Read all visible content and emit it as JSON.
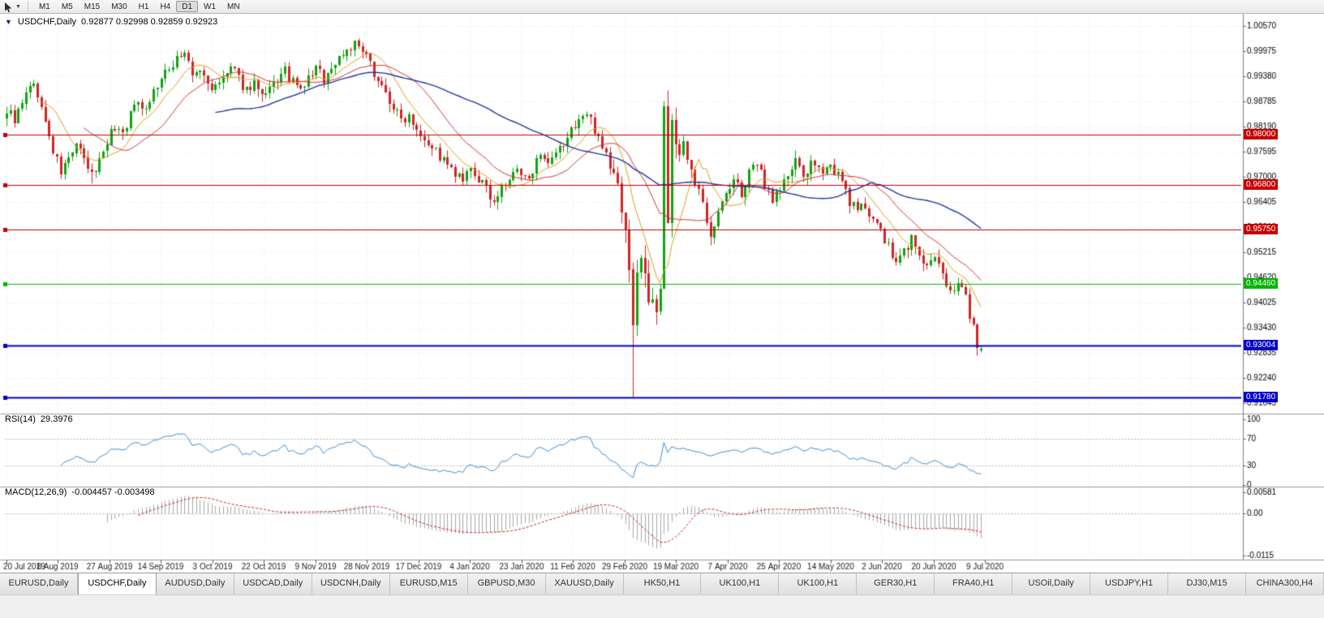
{
  "toolbar": {
    "timeframes": [
      {
        "label": "M1",
        "active": false
      },
      {
        "label": "M5",
        "active": false
      },
      {
        "label": "M15",
        "active": false
      },
      {
        "label": "M30",
        "active": false
      },
      {
        "label": "H1",
        "active": false
      },
      {
        "label": "H4",
        "active": false
      },
      {
        "label": "D1",
        "active": true
      },
      {
        "label": "W1",
        "active": false
      },
      {
        "label": "MN",
        "active": false
      }
    ]
  },
  "panels": {
    "main": {
      "symbol_tf": "USDCHF,Daily",
      "ohlc": "0.92877 0.92998 0.92859 0.92923"
    },
    "rsi": {
      "name": "RSI(14)",
      "value": "29.3976",
      "axis": [
        "100",
        "70",
        "30",
        "0"
      ],
      "axis_values": [
        100,
        70,
        30,
        0
      ]
    },
    "macd": {
      "name": "MACD(12,26,9)",
      "values": "-0.004457 -0.003498",
      "axis": [
        {
          "label": "0.00581",
          "value": 0.00581
        },
        {
          "label": "0.00",
          "value": 0
        },
        {
          "label": "-0.0115",
          "value": -0.0115
        }
      ]
    }
  },
  "colors": {
    "candle_up": "#0fa30f",
    "candle_down": "#cf2525",
    "ma_fast": "#e0a020",
    "ma_mid": "#d23535",
    "ma_slow": "#2438a0",
    "rsi_line": "#3f8fd2",
    "macd_bar": "#a8a8a8",
    "macd_signal": "#cc2222",
    "grid": "#e3e3e3",
    "level_dash": "#b5b5b5",
    "axis_text": "#000000",
    "date_text": "#222222"
  },
  "chart_data": {
    "type": "candlestick",
    "symbol": "USDCHF",
    "timeframe": "Daily",
    "bars": 253,
    "y_range": {
      "top": 1.0076,
      "bottom": 0.9143
    },
    "y_axis_labels": [
      "1.00570",
      "0.99975",
      "0.99380",
      "0.98785",
      "0.98190",
      "0.97595",
      "0.97000",
      "0.96405",
      "0.95810",
      "0.95215",
      "0.94620",
      "0.94025",
      "0.93430",
      "0.92835",
      "0.92240",
      "0.91645"
    ],
    "x_labels": [
      "20 Jul 2019",
      "8 Aug 2019",
      "27 Aug 2019",
      "14 Sep 2019",
      "3 Oct 2019",
      "22 Oct 2019",
      "9 Nov 2019",
      "28 Nov 2019",
      "17 Dec 2019",
      "4 Jan 2020",
      "23 Jan 2020",
      "11 Feb 2020",
      "29 Feb 2020",
      "19 Mar 2020",
      "7 Apr 2020",
      "25 Apr 2020",
      "14 May 2020",
      "2 Jun 2020",
      "20 Jun 2020",
      "9 Jul 2020"
    ],
    "close_anchors": [
      [
        0,
        0.9858
      ],
      [
        2,
        0.9836
      ],
      [
        4,
        0.9868
      ],
      [
        6,
        0.9922
      ],
      [
        8,
        0.9898
      ],
      [
        10,
        0.9826
      ],
      [
        12,
        0.976
      ],
      [
        14,
        0.9712
      ],
      [
        16,
        0.9742
      ],
      [
        18,
        0.9778
      ],
      [
        20,
        0.9735
      ],
      [
        22,
        0.9702
      ],
      [
        24,
        0.974
      ],
      [
        26,
        0.9788
      ],
      [
        28,
        0.9818
      ],
      [
        30,
        0.9806
      ],
      [
        32,
        0.9846
      ],
      [
        34,
        0.9884
      ],
      [
        36,
        0.9862
      ],
      [
        38,
        0.9902
      ],
      [
        40,
        0.993
      ],
      [
        42,
        0.9952
      ],
      [
        44,
        0.9986
      ],
      [
        46,
        0.9992
      ],
      [
        48,
        0.9938
      ],
      [
        50,
        0.995
      ],
      [
        52,
        0.992
      ],
      [
        54,
        0.9906
      ],
      [
        56,
        0.9932
      ],
      [
        58,
        0.9956
      ],
      [
        60,
        0.993
      ],
      [
        62,
        0.9906
      ],
      [
        64,
        0.9924
      ],
      [
        66,
        0.9882
      ],
      [
        68,
        0.9902
      ],
      [
        70,
        0.993
      ],
      [
        72,
        0.9948
      ],
      [
        74,
        0.9922
      ],
      [
        76,
        0.9902
      ],
      [
        78,
        0.9932
      ],
      [
        80,
        0.9956
      ],
      [
        82,
        0.9932
      ],
      [
        84,
        0.9954
      ],
      [
        86,
        0.9984
      ],
      [
        88,
        1.0002
      ],
      [
        90,
        1.0014
      ],
      [
        92,
        0.9994
      ],
      [
        94,
        0.9964
      ],
      [
        96,
        0.9934
      ],
      [
        98,
        0.9896
      ],
      [
        100,
        0.9864
      ],
      [
        102,
        0.9834
      ],
      [
        104,
        0.9848
      ],
      [
        106,
        0.9818
      ],
      [
        108,
        0.9794
      ],
      [
        110,
        0.9772
      ],
      [
        112,
        0.9748
      ],
      [
        114,
        0.9724
      ],
      [
        116,
        0.9704
      ],
      [
        118,
        0.9688
      ],
      [
        120,
        0.9712
      ],
      [
        122,
        0.9694
      ],
      [
        124,
        0.9668
      ],
      [
        126,
        0.9644
      ],
      [
        128,
        0.967
      ],
      [
        130,
        0.9694
      ],
      [
        132,
        0.9712
      ],
      [
        134,
        0.9692
      ],
      [
        136,
        0.972
      ],
      [
        138,
        0.9742
      ],
      [
        140,
        0.9722
      ],
      [
        142,
        0.975
      ],
      [
        144,
        0.9776
      ],
      [
        146,
        0.9808
      ],
      [
        148,
        0.9838
      ],
      [
        150,
        0.9846
      ],
      [
        152,
        0.9814
      ],
      [
        154,
        0.9778
      ],
      [
        156,
        0.9724
      ],
      [
        158,
        0.9678
      ],
      [
        160,
        0.9585
      ],
      [
        162,
        0.9358
      ],
      [
        163,
        0.9452
      ],
      [
        164,
        0.9528
      ],
      [
        165,
        0.9468
      ],
      [
        166,
        0.9392
      ],
      [
        167,
        0.9436
      ],
      [
        168,
        0.94
      ],
      [
        169,
        0.9452
      ],
      [
        170,
        0.9866
      ],
      [
        171,
        0.9568
      ],
      [
        172,
        0.9836
      ],
      [
        173,
        0.9794
      ],
      [
        174,
        0.9754
      ],
      [
        175,
        0.9798
      ],
      [
        176,
        0.9726
      ],
      [
        178,
        0.9682
      ],
      [
        180,
        0.9636
      ],
      [
        182,
        0.9568
      ],
      [
        184,
        0.9614
      ],
      [
        186,
        0.9658
      ],
      [
        188,
        0.969
      ],
      [
        190,
        0.9662
      ],
      [
        192,
        0.9704
      ],
      [
        194,
        0.9734
      ],
      [
        196,
        0.9684
      ],
      [
        198,
        0.9648
      ],
      [
        200,
        0.9672
      ],
      [
        202,
        0.9702
      ],
      [
        204,
        0.9732
      ],
      [
        206,
        0.9704
      ],
      [
        208,
        0.9726
      ],
      [
        210,
        0.9708
      ],
      [
        212,
        0.9732
      ],
      [
        214,
        0.9716
      ],
      [
        216,
        0.9684
      ],
      [
        218,
        0.9644
      ],
      [
        220,
        0.9614
      ],
      [
        222,
        0.9634
      ],
      [
        224,
        0.9604
      ],
      [
        226,
        0.957
      ],
      [
        228,
        0.953
      ],
      [
        230,
        0.9494
      ],
      [
        232,
        0.9524
      ],
      [
        234,
        0.9554
      ],
      [
        236,
        0.9514
      ],
      [
        238,
        0.9484
      ],
      [
        240,
        0.9504
      ],
      [
        242,
        0.9464
      ],
      [
        244,
        0.9434
      ],
      [
        246,
        0.9454
      ],
      [
        248,
        0.9414
      ],
      [
        250,
        0.9344
      ],
      [
        251,
        0.9298
      ],
      [
        252,
        0.9292
      ]
    ],
    "volatility_zones": [
      [
        0,
        155,
        0.0032
      ],
      [
        156,
        176,
        0.0062
      ],
      [
        177,
        252,
        0.0034
      ]
    ],
    "candle_overrides": {
      "22": {
        "l": 0.9684
      },
      "90": {
        "h": 1.0023
      },
      "162": {
        "l": 0.9178
      },
      "170": {
        "l": 0.9438
      },
      "171": {
        "h": 0.9905
      },
      "252": {
        "o": 0.92877,
        "h": 0.92998,
        "l": 0.92859,
        "c": 0.92923
      }
    },
    "moving_averages": [
      {
        "period": 10
      },
      {
        "period": 21
      },
      {
        "period": 55
      }
    ],
    "rsi": {
      "period": 14,
      "current": 29.3976,
      "levels": [
        70,
        30
      ]
    },
    "macd": {
      "fast": 12,
      "slow": 26,
      "signal": 9,
      "current": -0.004457,
      "signal_current": -0.003498,
      "y_top": 0.0064,
      "y_bottom": -0.0122
    },
    "horizontal_lines": [
      {
        "price": 0.98,
        "label": "0.98000",
        "color": "#c40000",
        "width": 1
      },
      {
        "price": 0.968,
        "label": "0.96800",
        "color": "#c40000",
        "width": 1
      },
      {
        "price": 0.9575,
        "label": "0.95750",
        "color": "#c40000",
        "width": 1
      },
      {
        "price": 0.9446,
        "label": "0.94460",
        "color": "#00b400",
        "width": 1
      },
      {
        "price": 0.93004,
        "label": "0.93004",
        "color": "#0000cc",
        "width": 2
      },
      {
        "price": 0.9178,
        "label": "0.91780",
        "color": "#0000cc",
        "width": 2
      }
    ]
  },
  "tabs": [
    {
      "label": "EURUSD,Daily",
      "active": false
    },
    {
      "label": "USDCHF,Daily",
      "active": true
    },
    {
      "label": "AUDUSD,Daily",
      "active": false
    },
    {
      "label": "USDCAD,Daily",
      "active": false
    },
    {
      "label": "USDCNH,Daily",
      "active": false
    },
    {
      "label": "EURUSD,M15",
      "active": false
    },
    {
      "label": "GBPUSD,M30",
      "active": false
    },
    {
      "label": "XAUUSD,Daily",
      "active": false
    },
    {
      "label": "HK50,H1",
      "active": false
    },
    {
      "label": "UK100,H1",
      "active": false
    },
    {
      "label": "UK100,H1",
      "active": false
    },
    {
      "label": "GER30,H1",
      "active": false
    },
    {
      "label": "FRA40,H1",
      "active": false
    },
    {
      "label": "USOil,Daily",
      "active": false
    },
    {
      "label": "USDJPY,H1",
      "active": false
    },
    {
      "label": "DJ30,M15",
      "active": false
    },
    {
      "label": "CHINA300,H4",
      "active": false
    }
  ]
}
